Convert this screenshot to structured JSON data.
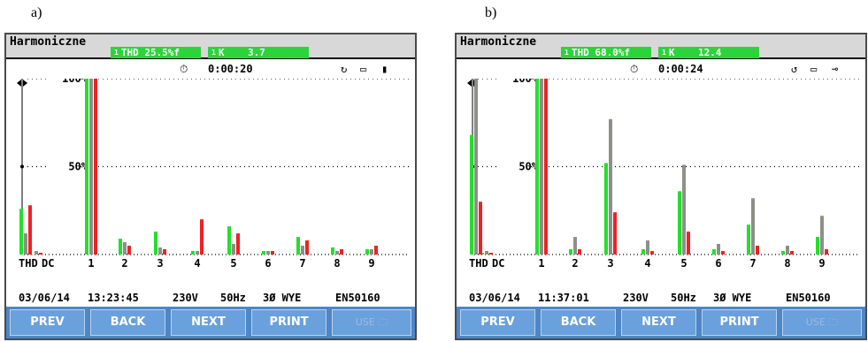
{
  "panels": [
    {
      "label": "a)",
      "title": "Harmoniczne",
      "thd_badge": "THD 25.5%f",
      "k_badge": "K    3.7",
      "badge_sup": "1",
      "timer": "0:00:20",
      "info": {
        "date": "03/06/14",
        "time": "13:23:45",
        "voltage": "230V",
        "freq": "50Hz",
        "phase": "3Ø WYE",
        "standard": "EN50160"
      },
      "buttons": [
        "PREV",
        "BACK",
        "NEXT",
        "PRINT",
        "USE"
      ]
    },
    {
      "label": "b)",
      "title": "Harmoniczne",
      "thd_badge": "THD 68.0%f",
      "k_badge": "K    12.4",
      "badge_sup": "1",
      "timer": "0:00:24",
      "info": {
        "date": "03/06/14",
        "time": "11:37:01",
        "voltage": "230V",
        "freq": "50Hz",
        "phase": "3Ø WYE",
        "standard": "EN50160"
      },
      "buttons": [
        "PREV",
        "BACK",
        "NEXT",
        "PRINT",
        "USE"
      ]
    }
  ],
  "colors": {
    "green": "#22e02a",
    "gray": "#8c9088",
    "red": "#ee2222",
    "accent_badge": "#2bd43b",
    "button_bar": "#4e86c6"
  },
  "chart_data": [
    {
      "type": "bar",
      "y_tick_labels": [
        "100%",
        "50%"
      ],
      "ylim": [
        0,
        100
      ],
      "categories": [
        "THD",
        "DC",
        "1",
        "2",
        "3",
        "4",
        "5",
        "6",
        "7",
        "8",
        "9"
      ],
      "series": [
        {
          "values": [
            26,
            0,
            100,
            9,
            13,
            2,
            16,
            2,
            10,
            4,
            3
          ]
        },
        {
          "values": [
            12,
            2,
            100,
            7,
            4,
            2,
            6,
            2,
            5,
            2,
            3
          ]
        },
        {
          "values": [
            28,
            1,
            100,
            5,
            3,
            20,
            12,
            2,
            8,
            3,
            5
          ]
        }
      ],
      "x_tick_labels": [
        "THD",
        "DC",
        "1",
        "2",
        "3",
        "4",
        "5",
        "6",
        "7",
        "8",
        "9"
      ]
    },
    {
      "type": "bar",
      "y_tick_labels": [
        "100%",
        "50%"
      ],
      "ylim": [
        0,
        100
      ],
      "categories": [
        "THD",
        "DC",
        "1",
        "2",
        "3",
        "4",
        "5",
        "6",
        "7",
        "8",
        "9"
      ],
      "series": [
        {
          "values": [
            68,
            1,
            100,
            3,
            52,
            3,
            36,
            3,
            17,
            2,
            10
          ]
        },
        {
          "values": [
            100,
            2,
            100,
            10,
            77,
            8,
            51,
            6,
            32,
            5,
            22
          ]
        },
        {
          "values": [
            30,
            1,
            100,
            3,
            24,
            2,
            13,
            2,
            5,
            2,
            3
          ]
        }
      ],
      "x_tick_labels": [
        "THD",
        "DC",
        "1",
        "2",
        "3",
        "4",
        "5",
        "6",
        "7",
        "8",
        "9"
      ]
    }
  ]
}
